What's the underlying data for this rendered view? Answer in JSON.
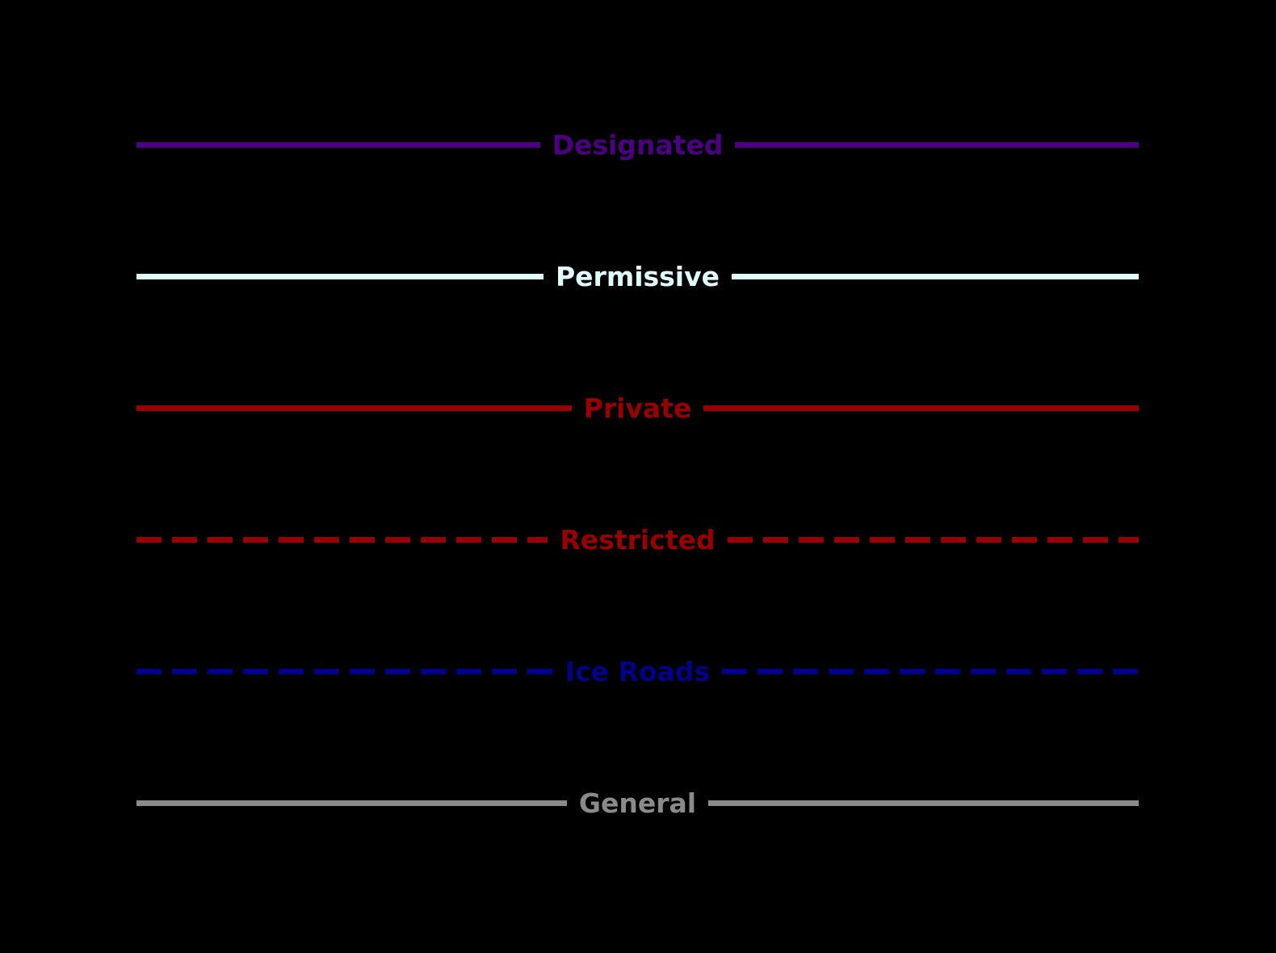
{
  "canvas": {
    "background": "#000000"
  },
  "legend": {
    "items": [
      {
        "id": "designated",
        "label": "Designated",
        "color": "#4B0082",
        "line_style": "solid"
      },
      {
        "id": "permissive",
        "label": "Permissive",
        "color": "#E0FFFF",
        "line_style": "solid"
      },
      {
        "id": "private",
        "label": "Private",
        "color": "#990000",
        "line_style": "solid"
      },
      {
        "id": "restricted",
        "label": "Restricted",
        "color": "#990000",
        "line_style": "dashed"
      },
      {
        "id": "ice-roads",
        "label": "Ice Roads",
        "color": "#00008B",
        "line_style": "dashed"
      },
      {
        "id": "general",
        "label": "General",
        "color": "#8A8A8A",
        "line_style": "solid"
      }
    ]
  }
}
